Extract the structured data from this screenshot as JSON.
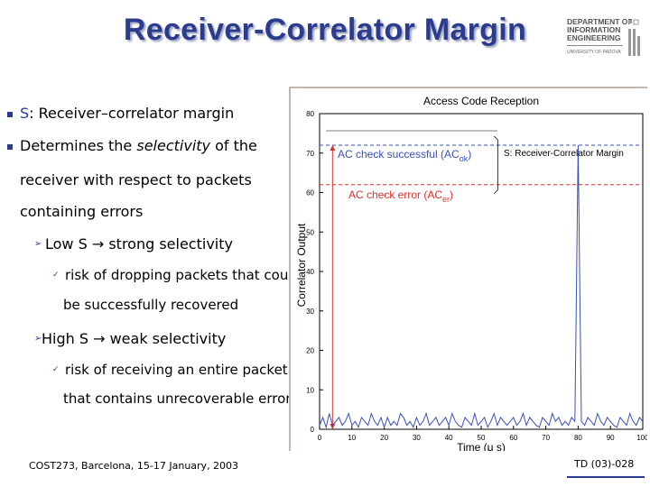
{
  "slide": {
    "title": "Receiver-Correlator Margin",
    "logo": {
      "line1": "DEPARTMENT OF",
      "line2": "INFORMATION",
      "line3": "ENGINEERING",
      "line4": "UNIVERSITY OF PADOVA"
    },
    "bullets": {
      "b1_symbol": "S",
      "b1_rest": ": Receiver–correlator margin",
      "b2_pre": "Determines the ",
      "b2_ital": "selectivity",
      "b2_post": " of the",
      "b2_line2": "receiver with respect to packets",
      "b2_line3": "containing errors",
      "sub1": "Low S → strong selectivity",
      "sub1_detail_1": "risk of dropping packets that could",
      "sub1_detail_2": "be successfully recovered",
      "sub2": "High S → weak selectivity",
      "sub2_detail_1": "risk of receiving an entire packet",
      "sub2_detail_2": "that contains unrecoverable errors"
    },
    "footer_left": "COST273, Barcelona, 15-17 January, 2003",
    "footer_right": "TD (03)-028"
  },
  "chart_data": {
    "type": "line",
    "title": "Access Code Reception",
    "xlabel": "Time (μ s)",
    "ylabel": "Correlator Output",
    "xlim": [
      0,
      100
    ],
    "ylim": [
      0,
      80
    ],
    "x_ticks": [
      "0",
      "10",
      "20",
      "30",
      "40",
      "50",
      "60",
      "70",
      "80",
      "90",
      "100"
    ],
    "y_ticks": [
      "0",
      "10",
      "20",
      "30",
      "40",
      "50",
      "60",
      "70",
      "80"
    ],
    "annotations": {
      "ac_ok": "AC check successful (AC",
      "ac_ok_sub": "ok",
      "ac_ok_close": ")",
      "ac_err": "AC check error (AC",
      "ac_err_sub": "er",
      "ac_err_close": ")",
      "margin": "S: Receiver-Correlator Margin"
    },
    "thresholds": {
      "ac_ok": 72,
      "ac_err": 62
    },
    "line_color": "#3a4fb8",
    "threshold_color": "#3a4fb8",
    "error_color": "#e03030",
    "series": [
      {
        "x": [
          0,
          1,
          2,
          3,
          4,
          5,
          6,
          7,
          8,
          9,
          10,
          11,
          12,
          13,
          14,
          15,
          16,
          17,
          18,
          19,
          20,
          21,
          22,
          23,
          24,
          25,
          26,
          27,
          28,
          29,
          30,
          31,
          32,
          33,
          34,
          35,
          36,
          37,
          38,
          39,
          40,
          41,
          42,
          43,
          44,
          45,
          46,
          47,
          48,
          49,
          50,
          51,
          52,
          53,
          54,
          55,
          56,
          57,
          58,
          59,
          60,
          61,
          62,
          63,
          64,
          65,
          66,
          67,
          68,
          69,
          70,
          71,
          72,
          73,
          74,
          75,
          76,
          77,
          78,
          79,
          80,
          81,
          82,
          83,
          84,
          85,
          86,
          87,
          88,
          89,
          90,
          91,
          92,
          93,
          94,
          95,
          96,
          97,
          98,
          99,
          100
        ],
        "values": [
          1,
          3,
          0.5,
          4,
          1,
          2,
          3,
          1,
          2,
          4,
          1,
          2,
          0.5,
          3,
          2,
          1,
          4,
          2,
          1,
          3,
          0.5,
          3,
          1,
          2,
          1,
          4,
          3,
          1,
          2,
          0.5,
          3,
          1,
          2,
          4,
          1,
          2,
          3,
          1,
          2,
          3,
          1,
          4,
          2,
          1,
          0.5,
          3,
          2,
          1,
          4,
          1,
          2,
          3,
          0.5,
          2,
          4,
          1,
          3,
          2,
          1,
          2,
          3,
          1,
          2,
          4,
          1,
          3,
          2,
          1,
          0.5,
          3,
          2,
          1,
          4,
          2,
          3,
          1,
          2,
          1,
          3,
          2,
          72,
          2,
          1,
          3,
          2,
          1,
          4,
          2,
          1,
          3,
          2,
          1,
          0.5,
          3,
          2,
          1,
          4,
          2,
          1,
          3,
          2
        ]
      }
    ]
  }
}
